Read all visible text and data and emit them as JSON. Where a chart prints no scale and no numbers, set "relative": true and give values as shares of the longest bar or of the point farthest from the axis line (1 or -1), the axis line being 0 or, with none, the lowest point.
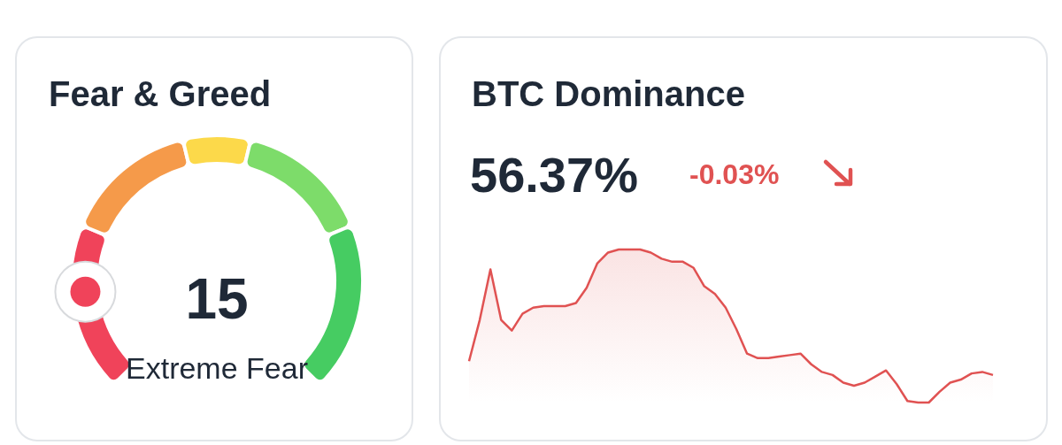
{
  "chart_data": [
    {
      "type": "donut",
      "title": "Fear & Greed",
      "categories": [
        null,
        null,
        null,
        null,
        null
      ],
      "values": [
        25,
        20,
        10,
        20,
        25
      ],
      "colors": [
        "#f0435a",
        "#f59a4a",
        "#fcd94a",
        "#7ddc6a",
        "#46cc62"
      ],
      "annotations": [
        "15",
        "Extreme Fear"
      ]
    },
    {
      "type": "line",
      "title": "BTC Dominance",
      "relative": true,
      "categories": [
        null,
        null,
        null,
        null,
        null,
        null,
        null,
        null,
        null,
        null,
        null,
        null,
        null,
        null,
        null,
        null,
        null,
        null,
        null,
        null,
        null,
        null,
        null,
        null,
        null,
        null,
        null,
        null,
        null,
        null,
        null,
        null,
        null,
        null,
        null,
        null,
        null,
        null,
        null,
        null,
        null,
        null,
        null,
        null,
        null,
        null,
        null,
        null,
        null,
        null
      ],
      "series": [
        {
          "color": "#e05252",
          "values": [
            0.27,
            0.54,
            0.87,
            0.54,
            0.47,
            0.58,
            0.62,
            0.63,
            0.63,
            0.63,
            0.65,
            0.75,
            0.91,
            0.98,
            1,
            1,
            1,
            0.98,
            0.94,
            0.92,
            0.92,
            0.88,
            0.76,
            0.71,
            0.62,
            0.48,
            0.32,
            0.29,
            0.29,
            0.3,
            0.31,
            0.32,
            0.25,
            0.2,
            0.18,
            0.13,
            0.11,
            0.13,
            0.17,
            0.21,
            0.12,
            0.01,
            0,
            0,
            0.07,
            0.13,
            0.15,
            0.19,
            0.2,
            0.18
          ]
        }
      ],
      "annotations": [
        "56.37%",
        "-0.03%"
      ]
    }
  ]
}
